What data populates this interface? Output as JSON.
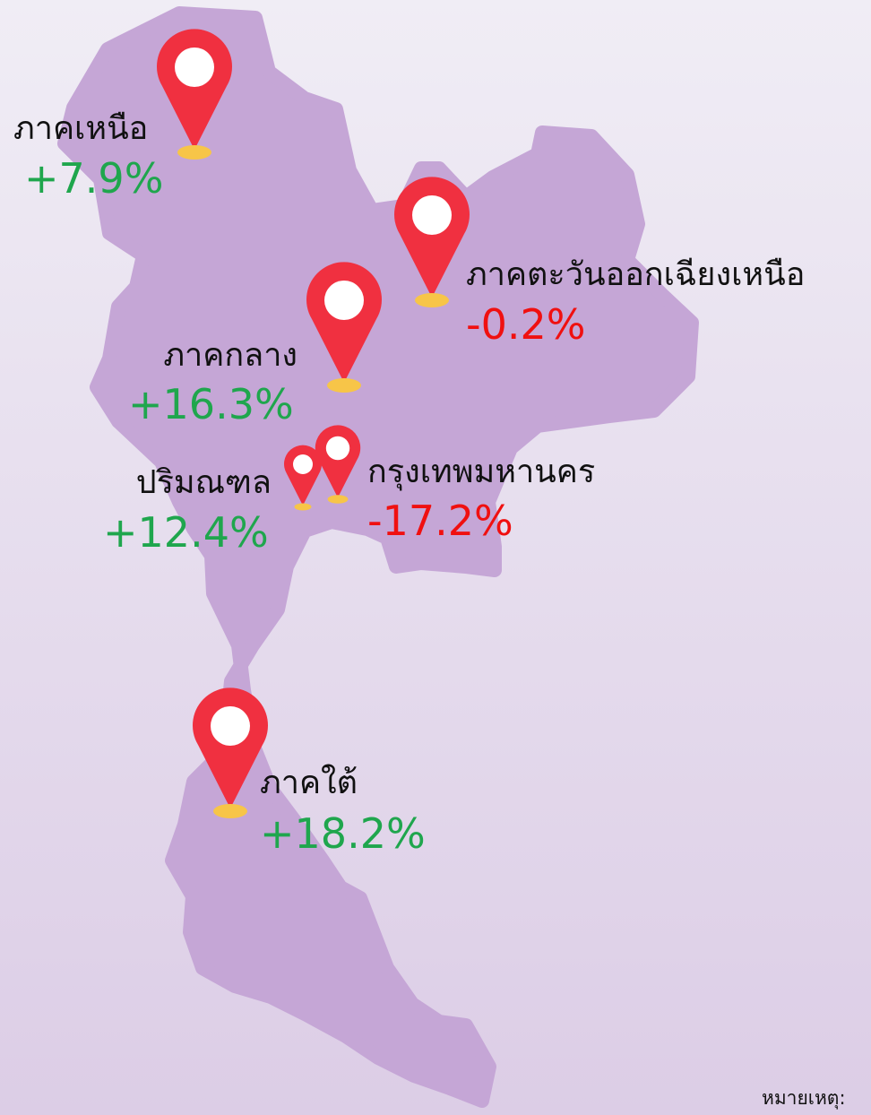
{
  "regions": [
    {
      "name": "ภาคเหนือ",
      "change": "+7.9%",
      "color": "#1fa64d"
    },
    {
      "name": "ภาคตะวันออกเฉียงเหนือ",
      "change": "-0.2%",
      "color": "#f01010"
    },
    {
      "name": "ภาคกลาง",
      "change": "+16.3%",
      "color": "#1fa64d"
    },
    {
      "name": "ปริมณฑล",
      "change": "+12.4%",
      "color": "#1fa64d"
    },
    {
      "name": "กรุงเทพมหานคร",
      "change": "-17.2%",
      "color": "#f01010"
    },
    {
      "name": "ภาคใต้",
      "change": "+18.2%",
      "color": "#1fa64d"
    }
  ],
  "note": "หมายเหตุ:"
}
